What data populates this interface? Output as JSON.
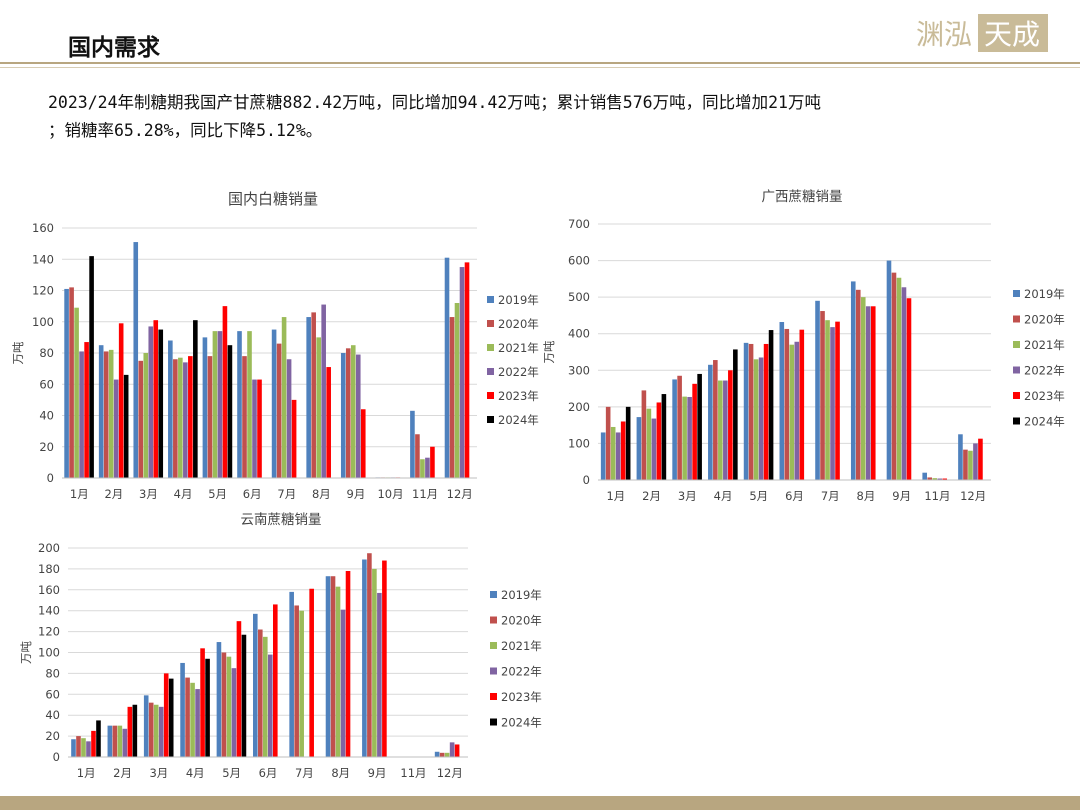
{
  "page": {
    "title": "国内需求",
    "summary_line1": "2023/24年制糖期我国产甘蔗糖882.42万吨，同比增加94.42万吨；累计销售576万吨，同比增加21万吨",
    "summary_line2": "；销糖率65.28%，同比下降5.12%。",
    "logo_text": "渊泓 天成"
  },
  "colors": {
    "2019年": "#4f81bd",
    "2020年": "#c0504d",
    "2021年": "#9bbb59",
    "2022年": "#8064a2",
    "2023年": "#ff0000",
    "2024年": "#000000",
    "accent": "#b8a680"
  },
  "chart_data": [
    {
      "type": "bar",
      "title": "国内白糖销量",
      "ylabel": "万吨",
      "xlabel": "",
      "ylim": [
        0,
        160
      ],
      "yticks": [
        0,
        20,
        40,
        60,
        80,
        100,
        120,
        140,
        160
      ],
      "legend_position": "right",
      "grid": true,
      "categories": [
        "1月",
        "2月",
        "3月",
        "4月",
        "5月",
        "6月",
        "7月",
        "8月",
        "9月",
        "10月",
        "11月",
        "12月"
      ],
      "series": [
        {
          "name": "2019年",
          "values": [
            121,
            85,
            151,
            88,
            90,
            94,
            95,
            103,
            80,
            0.3,
            43,
            141
          ]
        },
        {
          "name": "2020年",
          "values": [
            122,
            81,
            75,
            76,
            78,
            78,
            86,
            106,
            83,
            0.3,
            28,
            103
          ]
        },
        {
          "name": "2021年",
          "values": [
            109,
            82,
            80,
            77,
            94,
            94,
            103,
            90,
            85,
            0.3,
            12,
            112
          ]
        },
        {
          "name": "2022年",
          "values": [
            81,
            63,
            97,
            74,
            94,
            63,
            76,
            111,
            79,
            0.3,
            13,
            135
          ]
        },
        {
          "name": "2023年",
          "values": [
            87,
            99,
            101,
            78,
            110,
            63,
            50,
            71,
            44,
            0.3,
            20,
            138
          ]
        },
        {
          "name": "2024年",
          "values": [
            142,
            66,
            95,
            101,
            85,
            null,
            null,
            null,
            null,
            null,
            null,
            null
          ]
        }
      ]
    },
    {
      "type": "bar",
      "title": "广西蔗糖销量",
      "ylabel": "万吨",
      "xlabel": "",
      "ylim": [
        0,
        700
      ],
      "yticks": [
        0,
        100,
        200,
        300,
        400,
        500,
        600,
        700
      ],
      "legend_position": "right",
      "grid": true,
      "categories": [
        "1月",
        "2月",
        "3月",
        "4月",
        "5月",
        "6月",
        "7月",
        "8月",
        "9月",
        "11月",
        "12月"
      ],
      "series": [
        {
          "name": "2019年",
          "values": [
            130,
            172,
            275,
            315,
            375,
            432,
            490,
            543,
            600,
            20,
            125
          ]
        },
        {
          "name": "2020年",
          "values": [
            200,
            245,
            285,
            328,
            372,
            413,
            462,
            520,
            567,
            7,
            83
          ]
        },
        {
          "name": "2021年",
          "values": [
            145,
            195,
            228,
            272,
            330,
            370,
            437,
            500,
            553,
            5,
            80
          ]
        },
        {
          "name": "2022年",
          "values": [
            130,
            168,
            227,
            272,
            335,
            378,
            418,
            475,
            527,
            4,
            100
          ]
        },
        {
          "name": "2023年",
          "values": [
            160,
            212,
            263,
            300,
            372,
            411,
            433,
            475,
            497,
            4,
            113
          ]
        },
        {
          "name": "2024年",
          "values": [
            200,
            235,
            290,
            357,
            410,
            null,
            null,
            null,
            null,
            null,
            null
          ]
        }
      ]
    },
    {
      "type": "bar",
      "title": "云南蔗糖销量",
      "ylabel": "万吨",
      "xlabel": "",
      "ylim": [
        0,
        200
      ],
      "yticks": [
        0,
        20,
        40,
        60,
        80,
        100,
        120,
        140,
        160,
        180,
        200
      ],
      "legend_position": "right",
      "grid": true,
      "categories": [
        "1月",
        "2月",
        "3月",
        "4月",
        "5月",
        "6月",
        "7月",
        "8月",
        "9月",
        "11月",
        "12月"
      ],
      "series": [
        {
          "name": "2019年",
          "values": [
            17,
            30,
            59,
            90,
            110,
            137,
            158,
            173,
            189,
            null,
            5
          ]
        },
        {
          "name": "2020年",
          "values": [
            20,
            30,
            52,
            76,
            100,
            122,
            145,
            173,
            195,
            null,
            4
          ]
        },
        {
          "name": "2021年",
          "values": [
            18,
            30,
            50,
            71,
            96,
            115,
            140,
            163,
            180,
            null,
            4
          ]
        },
        {
          "name": "2022年",
          "values": [
            15,
            27,
            48,
            65,
            85,
            98,
            null,
            141,
            157,
            null,
            14
          ]
        },
        {
          "name": "2023年",
          "values": [
            25,
            48,
            80,
            104,
            130,
            146,
            161,
            178,
            188,
            null,
            12
          ]
        },
        {
          "name": "2024年",
          "values": [
            35,
            50,
            75,
            94,
            117,
            null,
            null,
            null,
            null,
            null,
            null
          ]
        }
      ]
    }
  ]
}
